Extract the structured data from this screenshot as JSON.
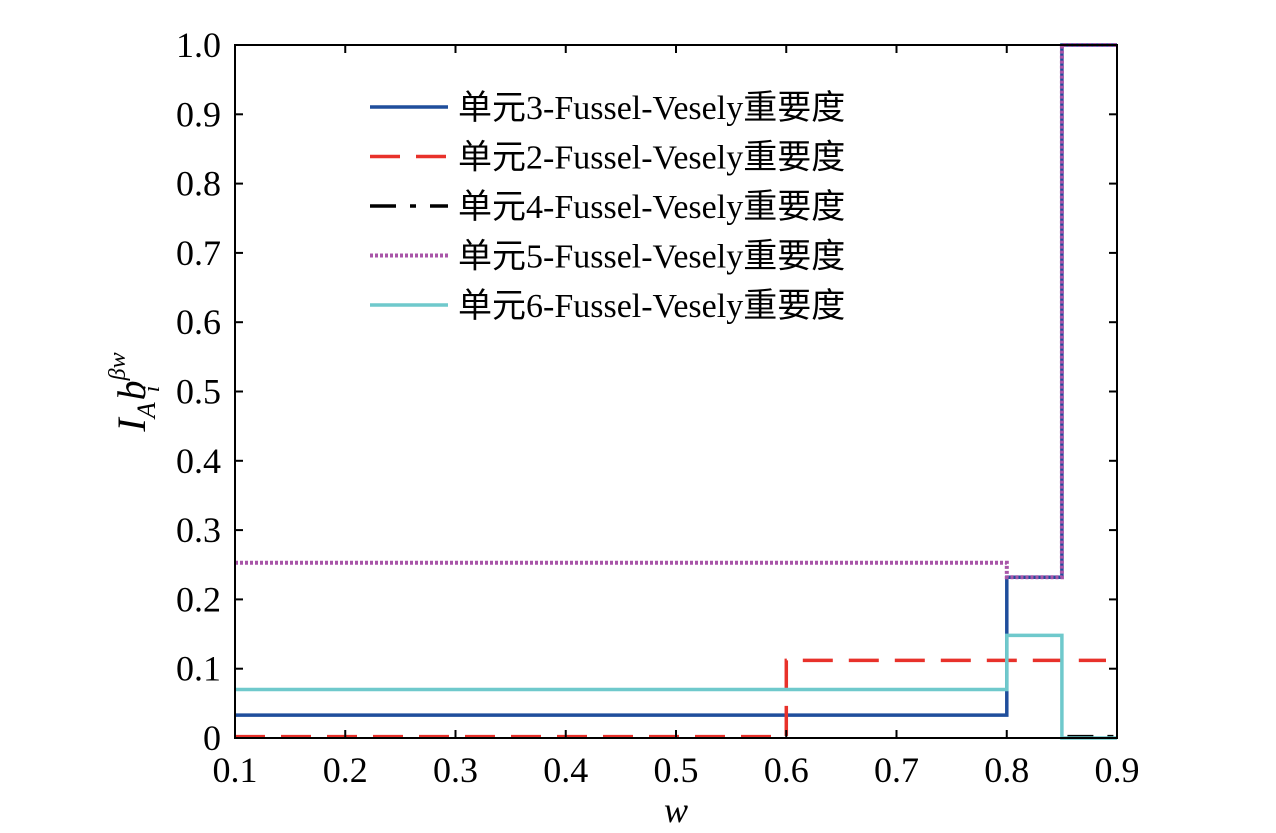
{
  "chart_data": {
    "type": "line",
    "title": "",
    "xlabel": "w",
    "ylabel": {
      "base": "I",
      "sub": "A",
      "main": "b",
      "sub2": "i",
      "sup": "βw"
    },
    "xlim": [
      0.1,
      0.9
    ],
    "ylim": [
      0,
      1.0
    ],
    "xticks": [
      0.1,
      0.2,
      0.3,
      0.4,
      0.5,
      0.6,
      0.7,
      0.8,
      0.9
    ],
    "xtick_labels": [
      "0.1",
      "0.2",
      "0.3",
      "0.4",
      "0.5",
      "0.6",
      "0.7",
      "0.8",
      "0.9"
    ],
    "yticks": [
      0,
      0.1,
      0.2,
      0.3,
      0.4,
      0.5,
      0.6,
      0.7,
      0.8,
      0.9,
      1.0
    ],
    "ytick_labels": [
      "0",
      "0.1",
      "0.2",
      "0.3",
      "0.4",
      "0.5",
      "0.6",
      "0.7",
      "0.8",
      "0.9",
      "1.0"
    ],
    "grid": false,
    "legend_position": "top-center",
    "series": [
      {
        "name": "单元3-Fussel-Vesely重要度",
        "color": "#1f4e9c",
        "style": "solid",
        "x": [
          0.1,
          0.8,
          0.8,
          0.85,
          0.85,
          0.9
        ],
        "y": [
          0.033,
          0.033,
          0.232,
          0.232,
          1.0,
          1.0
        ]
      },
      {
        "name": "单元2-Fussel-Vesely重要度",
        "color": "#e8312a",
        "style": "dashed",
        "x": [
          0.1,
          0.6,
          0.6,
          0.89
        ],
        "y": [
          0.002,
          0.002,
          0.112,
          0.112
        ]
      },
      {
        "name": "单元4-Fussel-Vesely重要度",
        "color": "#000000",
        "style": "dashdot",
        "x": [
          0.855,
          0.9
        ],
        "y": [
          0.002,
          0.002
        ]
      },
      {
        "name": "单元5-Fussel-Vesely重要度",
        "color": "#a855a8",
        "style": "dotted",
        "x": [
          0.1,
          0.8,
          0.8,
          0.85,
          0.85,
          0.9
        ],
        "y": [
          0.253,
          0.253,
          0.232,
          0.232,
          1.0,
          1.0
        ]
      },
      {
        "name": "单元6-Fussel-Vesely重要度",
        "color": "#6fc9cc",
        "style": "solid",
        "x": [
          0.1,
          0.8,
          0.8,
          0.85,
          0.85,
          0.9
        ],
        "y": [
          0.07,
          0.07,
          0.148,
          0.148,
          0.0,
          0.0
        ]
      }
    ]
  }
}
